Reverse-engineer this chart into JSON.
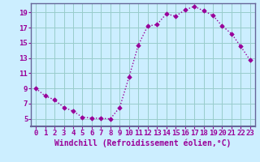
{
  "hours": [
    0,
    1,
    2,
    3,
    4,
    5,
    6,
    7,
    8,
    9,
    10,
    11,
    12,
    13,
    14,
    15,
    16,
    17,
    18,
    19,
    20,
    21,
    22,
    23
  ],
  "temps": [
    9.0,
    8.0,
    7.5,
    6.5,
    6.0,
    5.2,
    5.1,
    5.05,
    5.0,
    6.5,
    10.5,
    14.7,
    17.2,
    17.4,
    18.8,
    18.5,
    19.3,
    19.8,
    19.2,
    18.6,
    17.2,
    16.2,
    14.5,
    12.7
  ],
  "line_color": "#990099",
  "marker_color": "#990099",
  "bg_color": "#cceeff",
  "grid_color": "#99cccc",
  "xlabel": "Windchill (Refroidissement éolien,°C)",
  "xlim_min": -0.5,
  "xlim_max": 23.5,
  "ylim_min": 4.0,
  "ylim_max": 20.2,
  "yticks": [
    5,
    7,
    9,
    11,
    13,
    15,
    17,
    19
  ],
  "xticks": [
    0,
    1,
    2,
    3,
    4,
    5,
    6,
    7,
    8,
    9,
    10,
    11,
    12,
    13,
    14,
    15,
    16,
    17,
    18,
    19,
    20,
    21,
    22,
    23
  ],
  "xlabel_fontsize": 7.0,
  "tick_fontsize": 6.5,
  "label_color": "#990099",
  "spine_color": "#666699",
  "linewidth": 1.0,
  "markersize": 2.8
}
